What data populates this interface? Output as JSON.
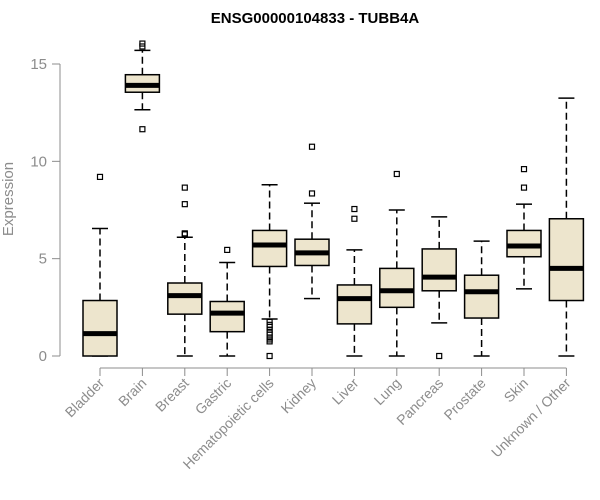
{
  "chart_data": {
    "type": "boxplot",
    "title": "ENSG00000104833 - TUBB4A",
    "ylabel": "Expression",
    "xlabel": "",
    "ylim": [
      0,
      16
    ],
    "yticks": [
      0,
      5,
      10,
      15
    ],
    "grid": false,
    "box_fill": "#ede5cd",
    "median_color": "#000000",
    "categories": [
      "Bladder",
      "Brain",
      "Breast",
      "Gastric",
      "Hematopoietic cells",
      "Kidney",
      "Liver",
      "Lung",
      "Pancreas",
      "Prostate",
      "Skin",
      "Unknown / Other"
    ],
    "boxes": [
      {
        "q1": 0.0,
        "median": 1.15,
        "q3": 2.85,
        "wmin": 0.0,
        "wmax": 6.55,
        "outliers": [
          9.2
        ]
      },
      {
        "q1": 13.55,
        "median": 13.9,
        "q3": 14.45,
        "wmin": 12.65,
        "wmax": 15.7,
        "outliers": [
          11.65,
          15.9,
          16.05
        ]
      },
      {
        "q1": 2.15,
        "median": 3.1,
        "q3": 3.75,
        "wmin": 0.0,
        "wmax": 6.1,
        "outliers": [
          6.25,
          6.3,
          7.8,
          8.65
        ]
      },
      {
        "q1": 1.25,
        "median": 2.2,
        "q3": 2.8,
        "wmin": 0.0,
        "wmax": 4.8,
        "outliers": [
          5.45
        ]
      },
      {
        "q1": 4.6,
        "median": 5.7,
        "q3": 6.45,
        "wmin": 1.9,
        "wmax": 8.8,
        "outliers": [
          1.75,
          1.6,
          1.5,
          1.35,
          1.2,
          1.1,
          0.95,
          0.85,
          0.75,
          0.0
        ]
      },
      {
        "q1": 4.65,
        "median": 5.3,
        "q3": 6.0,
        "wmin": 2.95,
        "wmax": 7.85,
        "outliers": [
          8.35,
          10.75
        ]
      },
      {
        "q1": 1.65,
        "median": 2.95,
        "q3": 3.65,
        "wmin": 0.0,
        "wmax": 5.45,
        "outliers": [
          7.05,
          7.55
        ]
      },
      {
        "q1": 2.5,
        "median": 3.35,
        "q3": 4.5,
        "wmin": 0.0,
        "wmax": 7.5,
        "outliers": [
          9.35
        ]
      },
      {
        "q1": 3.35,
        "median": 4.05,
        "q3": 5.5,
        "wmin": 1.7,
        "wmax": 7.15,
        "outliers": [
          0.0
        ]
      },
      {
        "q1": 1.95,
        "median": 3.3,
        "q3": 4.15,
        "wmin": 0.0,
        "wmax": 5.9,
        "outliers": []
      },
      {
        "q1": 5.1,
        "median": 5.65,
        "q3": 6.45,
        "wmin": 3.45,
        "wmax": 7.8,
        "outliers": [
          8.65,
          9.6
        ]
      },
      {
        "q1": 2.85,
        "median": 4.5,
        "q3": 7.05,
        "wmin": 0.0,
        "wmax": 13.25,
        "outliers": []
      }
    ]
  }
}
